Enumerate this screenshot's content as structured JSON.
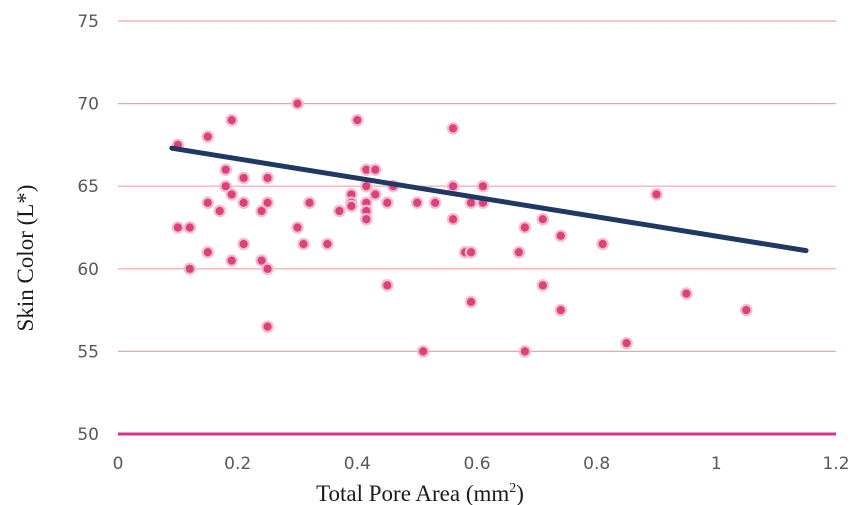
{
  "chart_data": {
    "type": "scatter",
    "title": "",
    "xlabel": "Total Pore Area (mm",
    "xlabel_sup": "2",
    "xlabel_close": ")",
    "ylabel": "Skin Color (L*)",
    "xlim": [
      0,
      1.2
    ],
    "ylim": [
      50,
      75
    ],
    "x_ticks": [
      0,
      0.2,
      0.4,
      0.6,
      0.8,
      1,
      1.2
    ],
    "y_ticks": [
      50,
      55,
      60,
      65,
      70,
      75
    ],
    "x_tick_labels": [
      "0",
      "0.2",
      "0.4",
      "0.6",
      "0.8",
      "1",
      "1.2"
    ],
    "y_tick_labels": [
      "50",
      "55",
      "60",
      "65",
      "70",
      "75"
    ],
    "grid": "horizontal",
    "colors": {
      "point_fill": "#e0407a",
      "point_stroke": "#f2bfd2",
      "trendline": "#1f3864",
      "grid": "#f2a3a3",
      "baseline": "#d6348a"
    },
    "series": [
      {
        "points": [
          [
            0.1,
            67.5
          ],
          [
            0.1,
            62.5
          ],
          [
            0.12,
            62.5
          ],
          [
            0.12,
            60.0
          ],
          [
            0.15,
            68.0
          ],
          [
            0.15,
            64.0
          ],
          [
            0.15,
            61.0
          ],
          [
            0.17,
            63.5
          ],
          [
            0.18,
            66.0
          ],
          [
            0.18,
            65.0
          ],
          [
            0.19,
            69.0
          ],
          [
            0.19,
            64.5
          ],
          [
            0.19,
            60.5
          ],
          [
            0.21,
            65.5
          ],
          [
            0.21,
            64.0
          ],
          [
            0.21,
            61.5
          ],
          [
            0.24,
            63.5
          ],
          [
            0.24,
            60.5
          ],
          [
            0.25,
            65.5
          ],
          [
            0.25,
            64.0
          ],
          [
            0.25,
            60.0
          ],
          [
            0.25,
            56.5
          ],
          [
            0.3,
            70.0
          ],
          [
            0.3,
            62.5
          ],
          [
            0.31,
            61.5
          ],
          [
            0.32,
            64.0
          ],
          [
            0.35,
            61.5
          ],
          [
            0.37,
            63.5
          ],
          [
            0.39,
            64.5
          ],
          [
            0.39,
            64.0
          ],
          [
            0.39,
            63.8
          ],
          [
            0.4,
            69.0
          ],
          [
            0.415,
            66.0
          ],
          [
            0.415,
            65.0
          ],
          [
            0.415,
            64.0
          ],
          [
            0.415,
            63.5
          ],
          [
            0.415,
            63.0
          ],
          [
            0.43,
            66.0
          ],
          [
            0.43,
            64.5
          ],
          [
            0.45,
            64.0
          ],
          [
            0.45,
            59.0
          ],
          [
            0.46,
            65.0
          ],
          [
            0.5,
            64.0
          ],
          [
            0.51,
            55.0
          ],
          [
            0.53,
            64.0
          ],
          [
            0.56,
            68.5
          ],
          [
            0.56,
            65.0
          ],
          [
            0.56,
            63.0
          ],
          [
            0.58,
            61.0
          ],
          [
            0.59,
            64.0
          ],
          [
            0.59,
            61.0
          ],
          [
            0.59,
            58.0
          ],
          [
            0.61,
            65.0
          ],
          [
            0.61,
            64.0
          ],
          [
            0.67,
            61.0
          ],
          [
            0.68,
            62.5
          ],
          [
            0.68,
            55.0
          ],
          [
            0.71,
            63.0
          ],
          [
            0.71,
            59.0
          ],
          [
            0.74,
            62.0
          ],
          [
            0.74,
            57.5
          ],
          [
            0.81,
            61.5
          ],
          [
            0.85,
            55.5
          ],
          [
            0.9,
            64.5
          ],
          [
            0.95,
            58.5
          ],
          [
            1.05,
            57.5
          ]
        ]
      }
    ],
    "trendline": {
      "x": [
        0.09,
        1.15
      ],
      "y": [
        67.3,
        61.1
      ]
    }
  }
}
